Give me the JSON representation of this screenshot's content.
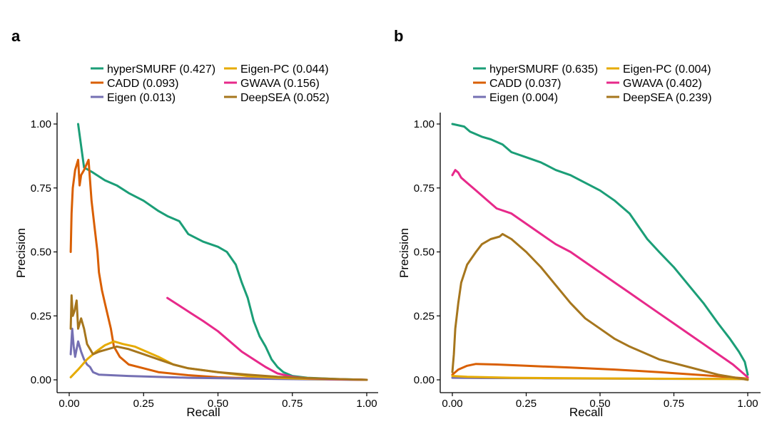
{
  "chart_data": [
    {
      "type": "line",
      "panel_label": "a",
      "title": "",
      "xlabel": "Recall",
      "ylabel": "Precision",
      "xlim": [
        0,
        1
      ],
      "ylim": [
        0,
        1
      ],
      "xticks": [
        "0.00",
        "0.25",
        "0.50",
        "0.75",
        "1.00"
      ],
      "yticks": [
        "0.00",
        "0.25",
        "0.50",
        "0.75",
        "1.00"
      ],
      "grid": false,
      "legend_position": "top",
      "series": [
        {
          "name": "hyperSMURF (0.427)",
          "color": "#1b9e77",
          "x": [
            0.03,
            0.05,
            0.08,
            0.12,
            0.16,
            0.2,
            0.25,
            0.3,
            0.33,
            0.37,
            0.4,
            0.45,
            0.5,
            0.53,
            0.56,
            0.58,
            0.6,
            0.62,
            0.64,
            0.66,
            0.68,
            0.7,
            0.72,
            0.75,
            0.8,
            0.9,
            1.0
          ],
          "y": [
            1.0,
            0.83,
            0.81,
            0.78,
            0.76,
            0.73,
            0.7,
            0.66,
            0.64,
            0.62,
            0.57,
            0.54,
            0.52,
            0.5,
            0.45,
            0.38,
            0.32,
            0.23,
            0.17,
            0.13,
            0.08,
            0.05,
            0.03,
            0.015,
            0.008,
            0.003,
            0.0
          ]
        },
        {
          "name": "CADD (0.093)",
          "color": "#d95f02",
          "x": [
            0.005,
            0.008,
            0.012,
            0.02,
            0.03,
            0.035,
            0.04,
            0.05,
            0.065,
            0.075,
            0.085,
            0.095,
            0.1,
            0.11,
            0.12,
            0.13,
            0.14,
            0.15,
            0.17,
            0.2,
            0.25,
            0.3,
            0.4,
            0.5,
            0.6,
            0.8,
            1.0
          ],
          "y": [
            0.5,
            0.65,
            0.75,
            0.82,
            0.86,
            0.76,
            0.8,
            0.82,
            0.86,
            0.7,
            0.6,
            0.5,
            0.42,
            0.35,
            0.3,
            0.25,
            0.2,
            0.13,
            0.09,
            0.06,
            0.045,
            0.03,
            0.018,
            0.01,
            0.006,
            0.003,
            0.0
          ]
        },
        {
          "name": "Eigen (0.013)",
          "color": "#7570b3",
          "x": [
            0.005,
            0.01,
            0.015,
            0.02,
            0.025,
            0.03,
            0.04,
            0.05,
            0.06,
            0.07,
            0.08,
            0.1,
            0.2,
            0.4,
            0.6,
            0.8,
            1.0
          ],
          "y": [
            0.1,
            0.2,
            0.13,
            0.09,
            0.12,
            0.15,
            0.11,
            0.08,
            0.06,
            0.05,
            0.03,
            0.02,
            0.015,
            0.008,
            0.005,
            0.002,
            0.0
          ]
        },
        {
          "name": "Eigen-PC (0.044)",
          "color": "#e6ab02",
          "x": [
            0.005,
            0.03,
            0.06,
            0.09,
            0.12,
            0.15,
            0.18,
            0.22,
            0.26,
            0.3,
            0.35,
            0.4,
            0.5,
            0.6,
            0.7,
            0.8,
            0.9,
            1.0
          ],
          "y": [
            0.01,
            0.04,
            0.08,
            0.11,
            0.135,
            0.15,
            0.14,
            0.13,
            0.11,
            0.09,
            0.06,
            0.045,
            0.03,
            0.015,
            0.008,
            0.004,
            0.002,
            0.0
          ]
        },
        {
          "name": "GWAVA (0.156)",
          "color": "#e7298a",
          "x": [
            0.33,
            0.37,
            0.41,
            0.45,
            0.5,
            0.54,
            0.58,
            0.62,
            0.66,
            0.7,
            0.75,
            0.8,
            0.9,
            1.0
          ],
          "y": [
            0.32,
            0.29,
            0.26,
            0.23,
            0.19,
            0.15,
            0.11,
            0.08,
            0.05,
            0.025,
            0.012,
            0.006,
            0.002,
            0.0
          ]
        },
        {
          "name": "DeepSEA (0.052)",
          "color": "#a6761d",
          "x": [
            0.005,
            0.008,
            0.012,
            0.018,
            0.025,
            0.03,
            0.04,
            0.05,
            0.06,
            0.08,
            0.1,
            0.13,
            0.16,
            0.2,
            0.25,
            0.3,
            0.35,
            0.4,
            0.5,
            0.6,
            0.7,
            0.8,
            0.9,
            1.0
          ],
          "y": [
            0.2,
            0.33,
            0.25,
            0.27,
            0.31,
            0.2,
            0.24,
            0.2,
            0.14,
            0.1,
            0.11,
            0.12,
            0.13,
            0.12,
            0.1,
            0.08,
            0.06,
            0.045,
            0.03,
            0.02,
            0.012,
            0.007,
            0.003,
            0.0
          ]
        }
      ]
    },
    {
      "type": "line",
      "panel_label": "b",
      "title": "",
      "xlabel": "Recall",
      "ylabel": "Precision",
      "xlim": [
        0,
        1
      ],
      "ylim": [
        0,
        1
      ],
      "xticks": [
        "0.00",
        "0.25",
        "0.50",
        "0.75",
        "1.00"
      ],
      "yticks": [
        "0.00",
        "0.25",
        "0.50",
        "0.75",
        "1.00"
      ],
      "grid": false,
      "legend_position": "top",
      "series": [
        {
          "name": "hyperSMURF (0.635)",
          "color": "#1b9e77",
          "x": [
            0.0,
            0.04,
            0.06,
            0.1,
            0.13,
            0.17,
            0.2,
            0.25,
            0.3,
            0.35,
            0.4,
            0.45,
            0.5,
            0.55,
            0.6,
            0.63,
            0.66,
            0.7,
            0.75,
            0.8,
            0.85,
            0.9,
            0.94,
            0.97,
            0.99,
            1.0
          ],
          "y": [
            1.0,
            0.99,
            0.97,
            0.95,
            0.94,
            0.92,
            0.89,
            0.87,
            0.85,
            0.82,
            0.8,
            0.77,
            0.74,
            0.7,
            0.65,
            0.6,
            0.55,
            0.5,
            0.44,
            0.37,
            0.3,
            0.22,
            0.16,
            0.11,
            0.07,
            0.02
          ]
        },
        {
          "name": "CADD (0.037)",
          "color": "#d95f02",
          "x": [
            0.0,
            0.02,
            0.05,
            0.08,
            0.15,
            0.25,
            0.4,
            0.55,
            0.7,
            0.85,
            1.0
          ],
          "y": [
            0.02,
            0.04,
            0.055,
            0.062,
            0.06,
            0.055,
            0.048,
            0.04,
            0.03,
            0.018,
            0.005
          ]
        },
        {
          "name": "Eigen (0.004)",
          "color": "#7570b3",
          "x": [
            0.0,
            0.1,
            0.3,
            0.5,
            0.7,
            0.9,
            1.0
          ],
          "y": [
            0.008,
            0.007,
            0.006,
            0.005,
            0.004,
            0.004,
            0.003
          ]
        },
        {
          "name": "Eigen-PC (0.004)",
          "color": "#e6ab02",
          "x": [
            0.0,
            0.05,
            0.2,
            0.4,
            0.6,
            0.8,
            1.0
          ],
          "y": [
            0.015,
            0.012,
            0.008,
            0.006,
            0.005,
            0.004,
            0.003
          ]
        },
        {
          "name": "GWAVA (0.402)",
          "color": "#e7298a",
          "x": [
            0.0,
            0.01,
            0.02,
            0.03,
            0.05,
            0.08,
            0.12,
            0.15,
            0.2,
            0.25,
            0.3,
            0.35,
            0.4,
            0.45,
            0.5,
            0.55,
            0.6,
            0.65,
            0.7,
            0.75,
            0.8,
            0.85,
            0.9,
            0.95,
            1.0
          ],
          "y": [
            0.8,
            0.82,
            0.81,
            0.79,
            0.77,
            0.74,
            0.7,
            0.67,
            0.65,
            0.61,
            0.57,
            0.53,
            0.5,
            0.46,
            0.42,
            0.38,
            0.34,
            0.3,
            0.26,
            0.22,
            0.18,
            0.14,
            0.1,
            0.06,
            0.01
          ]
        },
        {
          "name": "DeepSEA (0.239)",
          "color": "#a6761d",
          "x": [
            0.0,
            0.005,
            0.01,
            0.02,
            0.03,
            0.05,
            0.08,
            0.1,
            0.13,
            0.16,
            0.17,
            0.2,
            0.25,
            0.3,
            0.35,
            0.4,
            0.45,
            0.5,
            0.55,
            0.6,
            0.7,
            0.8,
            0.9,
            1.0
          ],
          "y": [
            0.03,
            0.1,
            0.2,
            0.3,
            0.38,
            0.45,
            0.5,
            0.53,
            0.55,
            0.56,
            0.57,
            0.55,
            0.5,
            0.44,
            0.37,
            0.3,
            0.24,
            0.2,
            0.16,
            0.13,
            0.08,
            0.05,
            0.02,
            0.0
          ]
        }
      ]
    }
  ]
}
